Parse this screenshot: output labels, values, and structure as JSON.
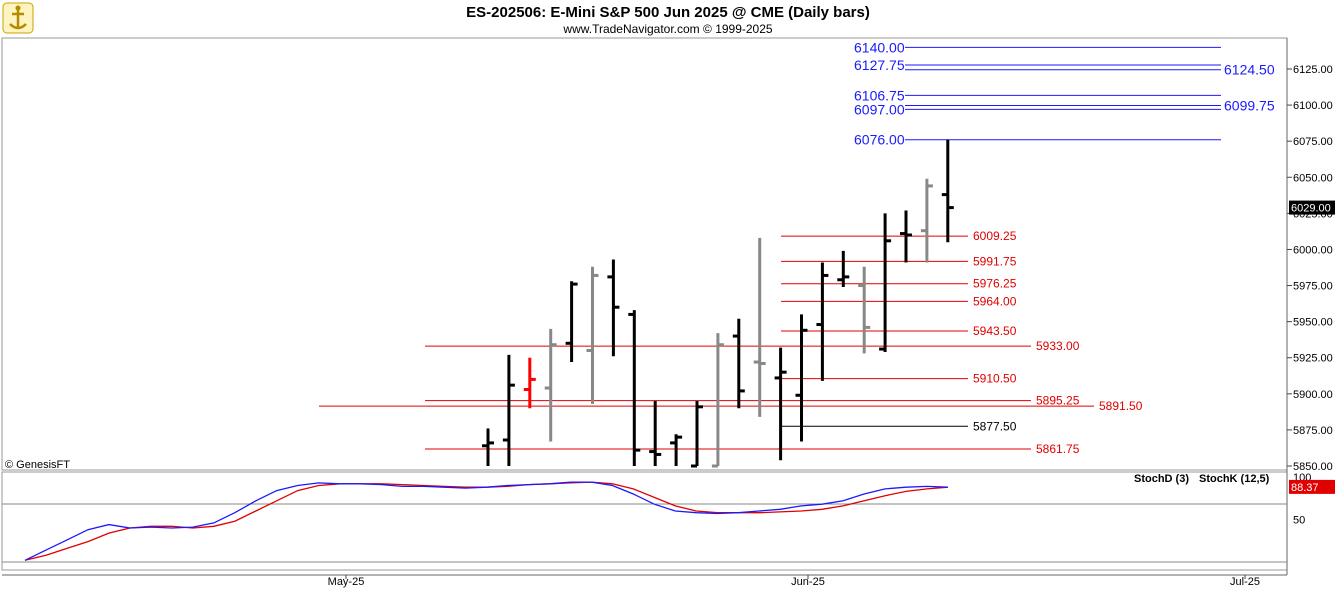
{
  "title": "ES-202506:  E-Mini S&P 500 Jun 2025 @ CME  (Daily bars)",
  "subtitle": "www.TradeNavigator.com © 1999-2025",
  "copyright": "© GenesisFT",
  "colors": {
    "up": "#000000",
    "down": "#888888",
    "highlight": "#ff0000",
    "blue": "#1a1aff",
    "red": "#e00000"
  },
  "chart_data": [
    {
      "type": "bar",
      "subtype": "ohlc",
      "title": "ES-202506:  E-Mini S&P 500 Jun 2025 @ CME  (Daily bars)",
      "x_ticks": [
        "May-25",
        "Jun-25",
        "Jul-25"
      ],
      "y_ticks": [
        "5850.00",
        "5875.00",
        "5900.00",
        "5925.00",
        "5950.00",
        "5975.00",
        "6000.00",
        "6025.00",
        "6050.00",
        "6075.00",
        "6100.00",
        "6125.00"
      ],
      "ylim": [
        5850,
        6140
      ],
      "last_price": "6029.00",
      "bars": [
        {
          "o": 5864,
          "h": 5876,
          "l": 5850,
          "c": 5866,
          "color": "up"
        },
        {
          "o": 5868,
          "h": 5927,
          "l": 5850,
          "c": 5906,
          "color": "up"
        },
        {
          "o": 5903,
          "h": 5925,
          "l": 5890,
          "c": 5910,
          "color": "highlight"
        },
        {
          "o": 5904,
          "h": 5945,
          "l": 5867,
          "c": 5934,
          "color": "down"
        },
        {
          "o": 5935,
          "h": 5978,
          "l": 5922,
          "c": 5976,
          "color": "up"
        },
        {
          "o": 5930,
          "h": 5988,
          "l": 5893,
          "c": 5982,
          "color": "down"
        },
        {
          "o": 5981,
          "h": 5993,
          "l": 5926,
          "c": 5960,
          "color": "up"
        },
        {
          "o": 5955,
          "h": 5958,
          "l": 5850,
          "c": 5861,
          "color": "up"
        },
        {
          "o": 5860,
          "h": 5895,
          "l": 5850,
          "c": 5858,
          "color": "up"
        },
        {
          "o": 5866,
          "h": 5872,
          "l": 5850,
          "c": 5870,
          "color": "up"
        },
        {
          "o": 5850,
          "h": 5895,
          "l": 5850,
          "c": 5891,
          "color": "up"
        },
        {
          "o": 5850,
          "h": 5942,
          "l": 5850,
          "c": 5934,
          "color": "down"
        },
        {
          "o": 5940,
          "h": 5952,
          "l": 5890,
          "c": 5902,
          "color": "up"
        },
        {
          "o": 5922,
          "h": 6008,
          "l": 5884,
          "c": 5921,
          "color": "down"
        },
        {
          "o": 5911,
          "h": 5932,
          "l": 5854,
          "c": 5915,
          "color": "up"
        },
        {
          "o": 5899,
          "h": 5955,
          "l": 5867,
          "c": 5944,
          "color": "up"
        },
        {
          "o": 5948,
          "h": 5991,
          "l": 5909,
          "c": 5982,
          "color": "up"
        },
        {
          "o": 5979,
          "h": 5999,
          "l": 5974,
          "c": 5981,
          "color": "up"
        },
        {
          "o": 5975,
          "h": 5988,
          "l": 5928,
          "c": 5946,
          "color": "down"
        },
        {
          "o": 5931,
          "h": 6025,
          "l": 5929,
          "c": 6006,
          "color": "up"
        },
        {
          "o": 6011,
          "h": 6027,
          "l": 5991,
          "c": 6010,
          "color": "up"
        },
        {
          "o": 6013,
          "h": 6049,
          "l": 5991,
          "c": 6044,
          "color": "down"
        },
        {
          "o": 6038,
          "h": 6076,
          "l": 6005,
          "c": 6029,
          "color": "up"
        }
      ],
      "levels_blue": [
        {
          "value": 6140,
          "label": "6140.00",
          "side": "left"
        },
        {
          "value": 6127.75,
          "label": "6127.75",
          "side": "left"
        },
        {
          "value": 6124.5,
          "label": "6124.50",
          "side": "right"
        },
        {
          "value": 6106.75,
          "label": "6106.75",
          "side": "left"
        },
        {
          "value": 6099.75,
          "label": "6099.75",
          "side": "right"
        },
        {
          "value": 6097,
          "label": "6097.00",
          "side": "left"
        },
        {
          "value": 6076,
          "label": "6076.00",
          "side": "left"
        }
      ],
      "levels_red": [
        {
          "value": 6009.25,
          "label": "6009.25",
          "span": "short"
        },
        {
          "value": 5991.75,
          "label": "5991.75",
          "span": "short"
        },
        {
          "value": 5976.25,
          "label": "5976.25",
          "span": "short"
        },
        {
          "value": 5964,
          "label": "5964.00",
          "span": "short"
        },
        {
          "value": 5943.5,
          "label": "5943.50",
          "span": "short"
        },
        {
          "value": 5933,
          "label": "5933.00",
          "span": "long"
        },
        {
          "value": 5910.5,
          "label": "5910.50",
          "span": "short"
        },
        {
          "value": 5895.25,
          "label": "5895.25",
          "span": "long"
        },
        {
          "value": 5891.5,
          "label": "5891.50",
          "span": "longest"
        },
        {
          "value": 5861.75,
          "label": "5861.75",
          "span": "long"
        }
      ],
      "levels_black": [
        {
          "value": 5877.5,
          "label": "5877.50"
        }
      ]
    },
    {
      "type": "line",
      "subtype": "stochastic",
      "ylim": [
        0,
        100
      ],
      "y_ticks": [
        "100",
        "50"
      ],
      "last_value": "88.37",
      "series": [
        {
          "name": "StochD (3)",
          "color": "#e00000",
          "values": [
            2,
            8,
            16,
            24,
            34,
            40,
            42,
            42,
            40,
            42,
            48,
            60,
            72,
            84,
            90,
            92,
            92,
            92,
            91,
            90,
            89,
            88,
            88,
            89,
            91,
            92,
            93,
            94,
            92,
            86,
            76,
            66,
            60,
            58,
            58,
            58,
            59,
            60,
            62,
            66,
            72,
            78,
            83,
            86,
            88
          ]
        },
        {
          "name": "StochK (12,5)",
          "color": "#1a1aff",
          "values": [
            2,
            14,
            26,
            38,
            44,
            40,
            41,
            40,
            41,
            46,
            58,
            72,
            84,
            90,
            93,
            92,
            92,
            91,
            89,
            89,
            88,
            87,
            88,
            90,
            91,
            92,
            94,
            94,
            90,
            80,
            68,
            60,
            58,
            57,
            58,
            60,
            62,
            66,
            68,
            72,
            80,
            86,
            88,
            89,
            88
          ]
        }
      ]
    }
  ]
}
